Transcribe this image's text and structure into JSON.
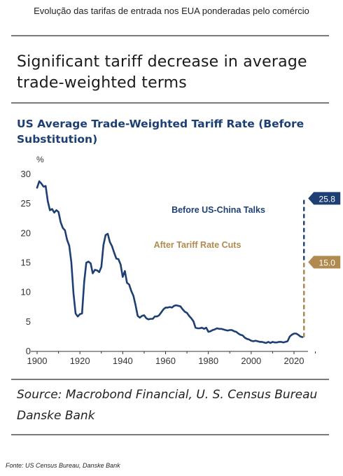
{
  "caption": "Evolução das tarifas de entrada nos EUA ponderadas pelo comércio",
  "headline": "Significant tariff decrease in average trade-weighted terms",
  "source_lines": [
    "Source: Macrobond Financial, U. S. Census Bureau",
    "Danske Bank"
  ],
  "footer": "Fonte: US Census Bureau, Danske Bank",
  "colors": {
    "line": "#1d3f73",
    "before": "#1d3f73",
    "after": "#b08a4e",
    "rule": "#7a7a7a"
  },
  "chart_data": {
    "type": "line",
    "title": "US Average Trade-Weighted Tariff Rate (Before Substitution)",
    "ylabel": "%",
    "xlabel": "",
    "xlim": [
      1898,
      2030
    ],
    "ylim": [
      0,
      30
    ],
    "x_ticks": [
      1900,
      1920,
      1940,
      1960,
      1980,
      2000,
      2020
    ],
    "y_ticks": [
      0,
      5,
      10,
      15,
      20,
      25,
      30
    ],
    "grid": false,
    "series": [
      {
        "name": "",
        "x": [
          1900,
          1901,
          1902,
          1903,
          1904,
          1905,
          1906,
          1907,
          1908,
          1909,
          1910,
          1911,
          1912,
          1913,
          1914,
          1915,
          1916,
          1917,
          1918,
          1919,
          1920,
          1921,
          1922,
          1923,
          1924,
          1925,
          1926,
          1927,
          1928,
          1929,
          1930,
          1931,
          1932,
          1933,
          1934,
          1935,
          1936,
          1937,
          1938,
          1939,
          1940,
          1941,
          1942,
          1943,
          1944,
          1945,
          1946,
          1947,
          1948,
          1949,
          1950,
          1951,
          1952,
          1953,
          1954,
          1955,
          1956,
          1957,
          1958,
          1959,
          1960,
          1961,
          1962,
          1963,
          1964,
          1965,
          1966,
          1967,
          1968,
          1969,
          1970,
          1971,
          1972,
          1973,
          1974,
          1975,
          1976,
          1977,
          1978,
          1979,
          1980,
          1981,
          1982,
          1983,
          1984,
          1985,
          1986,
          1987,
          1988,
          1989,
          1990,
          1991,
          1992,
          1993,
          1994,
          1995,
          1996,
          1997,
          1998,
          1999,
          2000,
          2001,
          2002,
          2003,
          2004,
          2005,
          2006,
          2007,
          2008,
          2009,
          2010,
          2011,
          2012,
          2013,
          2014,
          2015,
          2016,
          2017,
          2018,
          2019,
          2020,
          2021,
          2022,
          2023,
          2024
        ],
        "y": [
          27.6,
          28.7,
          28.3,
          27.8,
          27.9,
          25.3,
          23.8,
          24.0,
          23.4,
          23.8,
          23.5,
          21.8,
          20.8,
          20.4,
          18.8,
          17.8,
          15.0,
          9.7,
          6.3,
          5.8,
          6.2,
          6.3,
          11.7,
          14.9,
          15.1,
          14.8,
          13.1,
          13.7,
          13.6,
          13.3,
          14.2,
          17.9,
          19.6,
          19.8,
          18.4,
          17.7,
          16.6,
          15.6,
          15.5,
          14.6,
          12.5,
          13.5,
          11.5,
          11.2,
          10.1,
          9.3,
          7.7,
          5.9,
          5.6,
          5.9,
          6.0,
          5.5,
          5.3,
          5.4,
          5.4,
          5.8,
          5.8,
          6.0,
          6.5,
          7.0,
          7.3,
          7.3,
          7.4,
          7.3,
          7.6,
          7.7,
          7.6,
          7.5,
          7.0,
          6.6,
          6.4,
          5.9,
          5.5,
          5.0,
          3.9,
          3.8,
          3.8,
          3.9,
          3.7,
          3.9,
          3.2,
          3.3,
          3.5,
          3.6,
          3.8,
          3.7,
          3.7,
          3.6,
          3.5,
          3.4,
          3.5,
          3.5,
          3.3,
          3.2,
          2.9,
          2.7,
          2.6,
          2.2,
          2.0,
          1.9,
          1.7,
          1.6,
          1.7,
          1.6,
          1.5,
          1.5,
          1.4,
          1.3,
          1.5,
          1.3,
          1.5,
          1.4,
          1.4,
          1.5,
          1.5,
          1.4,
          1.5,
          1.6,
          2.4,
          2.7,
          2.9,
          2.9,
          2.7,
          2.4,
          2.3
        ]
      }
    ],
    "annotations": [
      {
        "label": "Before US-China Talks",
        "value": 25.8,
        "value_label": "25.8",
        "color": "#1d3f73"
      },
      {
        "label": "After Tariff Rate Cuts",
        "value": 15.0,
        "value_label": "15.0",
        "color": "#b08a4e"
      }
    ]
  }
}
